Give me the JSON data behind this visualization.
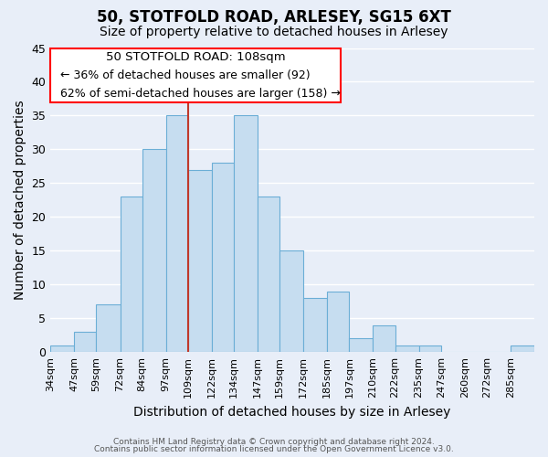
{
  "title": "50, STOTFOLD ROAD, ARLESEY, SG15 6XT",
  "subtitle": "Size of property relative to detached houses in Arlesey",
  "xlabel": "Distribution of detached houses by size in Arlesey",
  "ylabel": "Number of detached properties",
  "footer1": "Contains HM Land Registry data © Crown copyright and database right 2024.",
  "footer2": "Contains public sector information licensed under the Open Government Licence v3.0.",
  "bin_labels": [
    "34sqm",
    "47sqm",
    "59sqm",
    "72sqm",
    "84sqm",
    "97sqm",
    "109sqm",
    "122sqm",
    "134sqm",
    "147sqm",
    "159sqm",
    "172sqm",
    "185sqm",
    "197sqm",
    "210sqm",
    "222sqm",
    "235sqm",
    "247sqm",
    "260sqm",
    "272sqm",
    "285sqm"
  ],
  "bin_edges": [
    34,
    47,
    59,
    72,
    84,
    97,
    109,
    122,
    134,
    147,
    159,
    172,
    185,
    197,
    210,
    222,
    235,
    247,
    260,
    272,
    285,
    298
  ],
  "bar_values": [
    1,
    3,
    7,
    23,
    30,
    35,
    27,
    28,
    35,
    23,
    15,
    8,
    9,
    2,
    4,
    1,
    1,
    0,
    0,
    0,
    1
  ],
  "bar_color": "#c6ddf0",
  "bar_edge_color": "#6baed6",
  "property_line_x": 109,
  "property_line_color": "#c0392b",
  "annotation_title": "50 STOTFOLD ROAD: 108sqm",
  "annotation_line1": "← 36% of detached houses are smaller (92)",
  "annotation_line2": "62% of semi-detached houses are larger (158) →",
  "ylim": [
    0,
    45
  ],
  "yticks": [
    0,
    5,
    10,
    15,
    20,
    25,
    30,
    35,
    40,
    45
  ],
  "background_color": "#e8eef8",
  "grid_color": "white",
  "title_fontsize": 12,
  "subtitle_fontsize": 10,
  "axis_label_fontsize": 10,
  "tick_fontsize": 8,
  "annotation_fontsize": 9,
  "annotation_title_fontsize": 9.5
}
